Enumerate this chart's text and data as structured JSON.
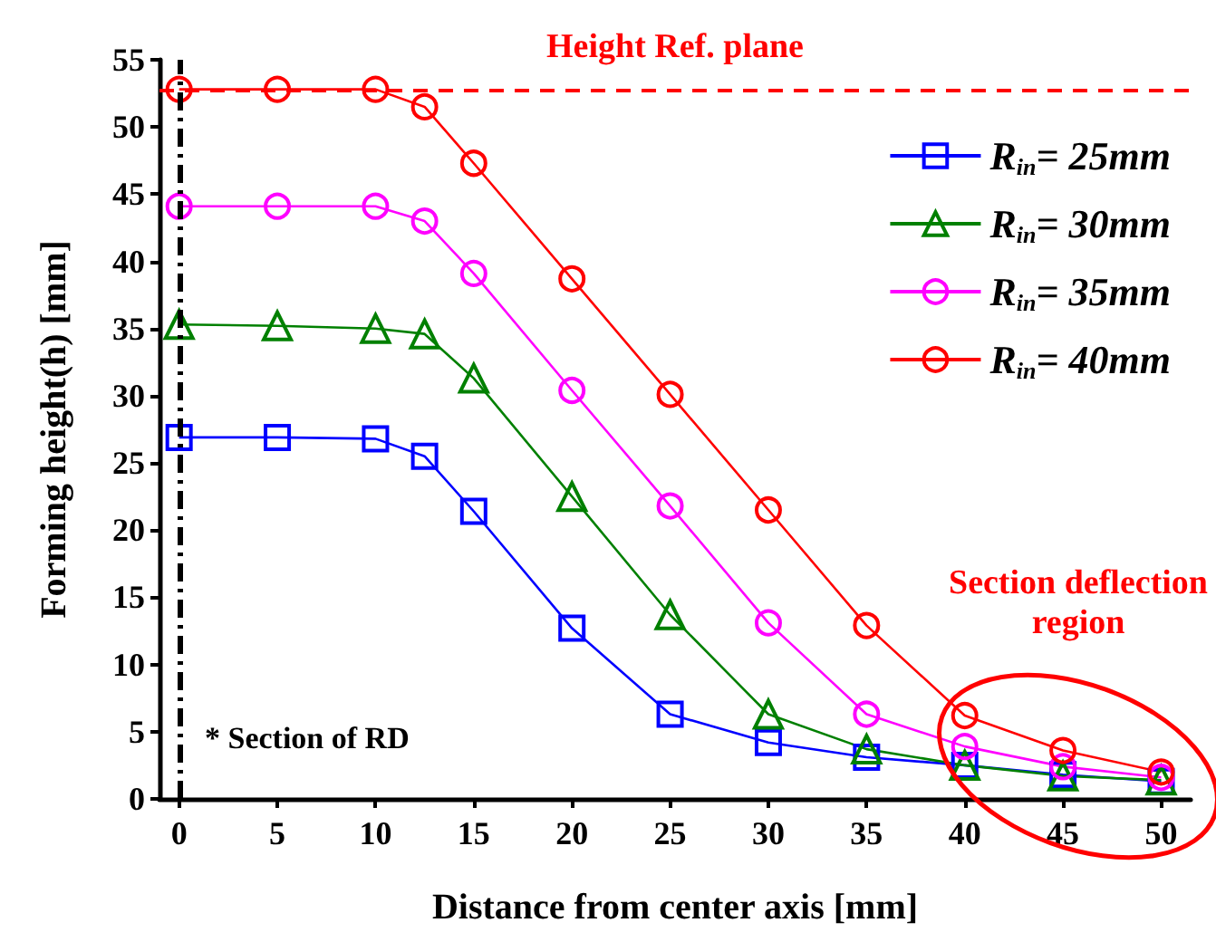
{
  "chart_data": {
    "type": "line",
    "xlabel": "Distance from center axis [mm]",
    "ylabel": "Forming height(h) [mm]",
    "x": [
      0,
      5,
      10,
      12.5,
      15,
      20,
      25,
      30,
      35,
      40,
      45,
      50
    ],
    "xlim": [
      -1,
      51.5
    ],
    "xticks": [
      0,
      5,
      10,
      15,
      20,
      25,
      30,
      35,
      40,
      45,
      50
    ],
    "ylim": [
      0,
      55
    ],
    "yticks": [
      0,
      5,
      10,
      15,
      20,
      25,
      30,
      35,
      40,
      45,
      50,
      55
    ],
    "grid": false,
    "legend": "top right",
    "line_style": "solid",
    "series": [
      {
        "name": "R$_{in}$= 25mm",
        "color": "#0000ff",
        "marker": "square",
        "values": [
          26.9,
          26.9,
          26.8,
          25.5,
          21.4,
          12.7,
          6.3,
          4.2,
          3.1,
          2.5,
          1.8,
          1.3
        ]
      },
      {
        "name": "R$_{in}$= 30mm",
        "color": "#008000",
        "marker": "triangle",
        "values": [
          35.3,
          35.2,
          35.0,
          34.6,
          31.3,
          22.5,
          13.7,
          6.3,
          3.7,
          2.5,
          1.7,
          1.4
        ]
      },
      {
        "name": "R$_{in}$= 35mm",
        "color": "#ff00ff",
        "marker": "circle",
        "values": [
          44.1,
          44.1,
          44.1,
          43.0,
          39.1,
          30.4,
          21.8,
          13.1,
          6.3,
          3.9,
          2.4,
          1.6
        ]
      },
      {
        "name": "R$_{in}$= 40mm",
        "color": "#ff0000",
        "marker": "circle",
        "values": [
          52.8,
          52.8,
          52.8,
          51.5,
          47.3,
          38.7,
          30.1,
          21.5,
          12.9,
          6.2,
          3.6,
          2.0
        ]
      }
    ],
    "ref_lines": [
      {
        "axis": "y",
        "value": 52.8,
        "label": "Height Ref. plane",
        "color": "#ff0000",
        "line_style": "dashed"
      },
      {
        "axis": "x",
        "value": 0,
        "color": "#000000",
        "line_style": "dashdot"
      }
    ],
    "annotations": [
      "* Section of RD",
      "Section deflection region"
    ]
  }
}
